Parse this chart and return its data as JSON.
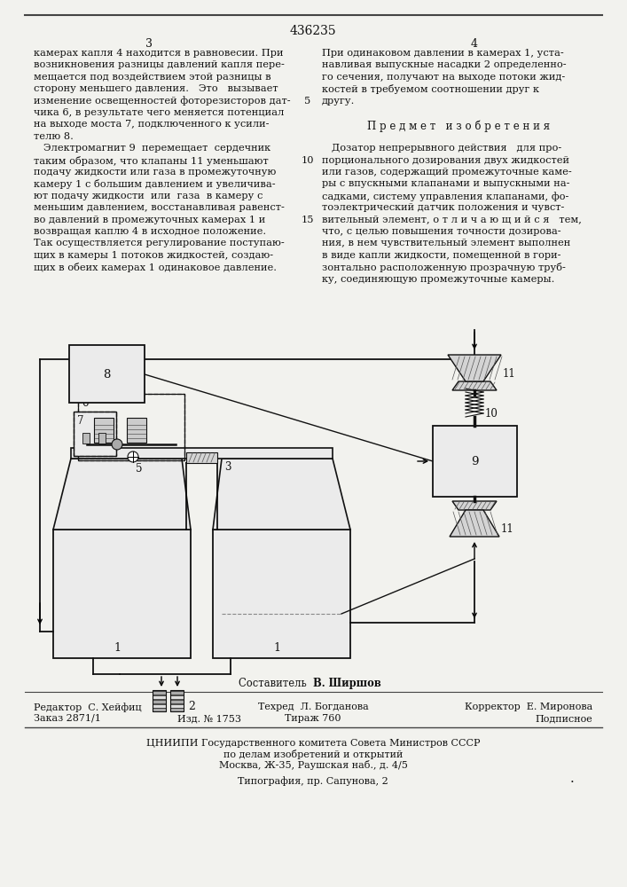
{
  "patent_number": "436235",
  "page_left": "3",
  "page_right": "4",
  "bg_color": "#f2f2ee",
  "text_color": "#111111",
  "left_col_lines": [
    "камерах капля 4 находится в равновесии. При",
    "возникновения разницы давлений капля пере-",
    "мещается под воздействием этой разницы в",
    "сторону меньшего давления.   Это   вызывает",
    "изменение освещенностей фоторезисторов дат-",
    "чика 6, в результате чего меняется потенциал",
    "на выходе моста 7, подключенного к усили-",
    "телю 8.",
    "   Электромагнит 9  перемещает  сердечник",
    "таким образом, что клапаны 11 уменьшают",
    "подачу жидкости или газа в промежуточную",
    "камеру 1 с большим давлением и увеличива-",
    "ют подачу жидкости  или  газа  в камеру с",
    "меньшим давлением, восстанавливая равенст-",
    "во давлений в промежуточных камерах 1 и",
    "возвращая каплю 4 в исходное положение.",
    "Так осуществляется регулирование поступаю-",
    "щих в камеры 1 потоков жидкостей, создаю-",
    "щих в обеих камерах 1 одинаковое давление."
  ],
  "right_col_lines": [
    "При одинаковом давлении в камерах 1, уста-",
    "навливая выпускные насадки 2 определенно-",
    "го сечения, получают на выходе потоки жид-",
    "костей в требуемом соотношении друг к",
    "другу.",
    "",
    "П р е д м е т   и з о б р е т е н и я",
    "",
    "   Дозатор непрерывного действия   для про-",
    "порционального дозирования двух жидкостей",
    "или газов, содержащий промежуточные каме-",
    "ры с впускными клапанами и выпускными на-",
    "садками, систему управления клапанами, фо-",
    "тоэлектрический датчик положения и чувст-",
    "вительный элемент, о т л и ч а ю щ и й с я   тем,",
    "что, с целью повышения точности дозирова-",
    "ния, в нем чувствительный элемент выполнен",
    "в виде капли жидкости, помещенной в гори-",
    "зонтально расположенную прозрачную труб-",
    "ку, соединяющую промежуточные камеры."
  ],
  "line_num_5_row": 4,
  "line_num_10_row": 9,
  "line_num_15_row": 14,
  "footer_editor": "Редактор  С. Хейфиц",
  "footer_tech": "Техред  Л. Богданова",
  "footer_corrector": "Корректор  Е. Миронова",
  "footer_composer": "Составитель",
  "footer_composer_name": "В. Ширшов",
  "footer_order": "Заказ 2871/1",
  "footer_izd": "Изд. № 1753",
  "footer_tirazh": "Тираж 760",
  "footer_podp": "Подписное",
  "footer_org": "ЦНИИПИ Государственного комитета Совета Министров СССР",
  "footer_org2": "по делам изобретений и открытий",
  "footer_addr": "Москва, Ж-35, Раушская наб., д. 4/5",
  "footer_print": "Типография, пр. Сапунова, 2"
}
